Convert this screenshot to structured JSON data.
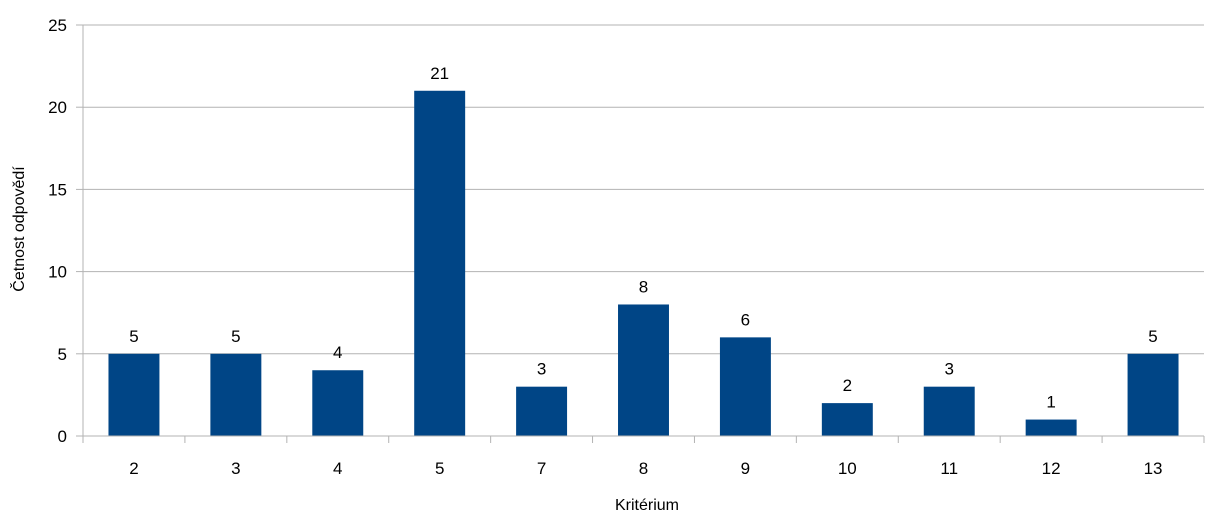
{
  "chart_data": {
    "type": "bar",
    "title": "",
    "xlabel": "Kritérium",
    "ylabel": "Četnost odpovědí",
    "categories": [
      "2",
      "3",
      "4",
      "5",
      "7",
      "8",
      "9",
      "10",
      "11",
      "12",
      "13"
    ],
    "values": [
      5,
      5,
      4,
      21,
      3,
      8,
      6,
      2,
      3,
      1,
      5
    ],
    "ylim": [
      0,
      25
    ],
    "yticks": [
      "0",
      "5",
      "10",
      "15",
      "20",
      "25"
    ],
    "grid": "horizontal",
    "legend": "none",
    "data_labels": true,
    "colors": {
      "bar": "#004586",
      "grid": "#b3b3b3",
      "axis": "#b3b3b3"
    }
  }
}
